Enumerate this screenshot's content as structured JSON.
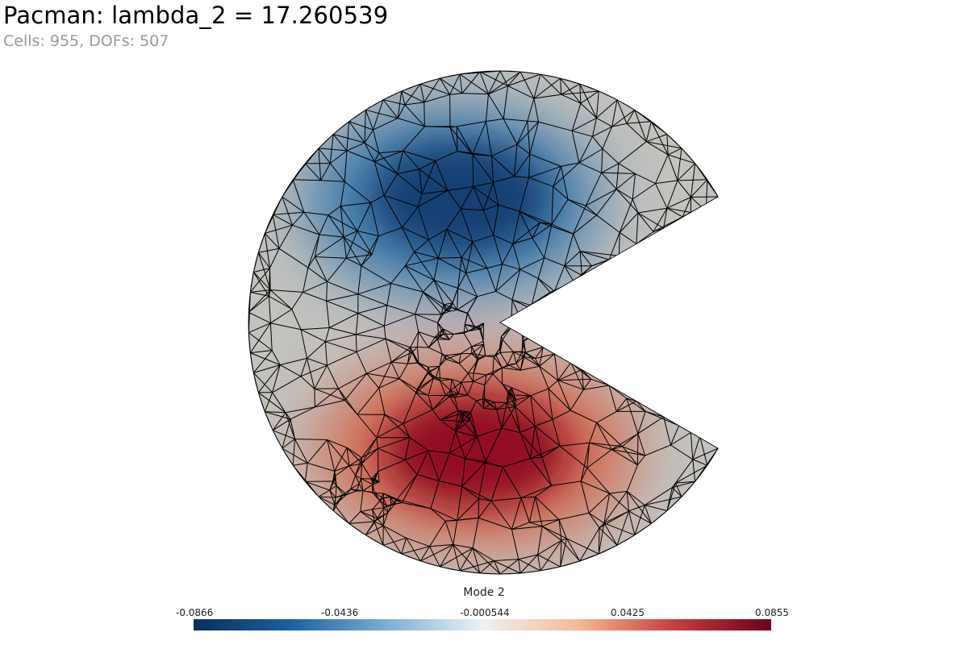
{
  "header": {
    "title": "Pacman: lambda_2 = 17.260539",
    "subtitle": "Cells: 955, DOFs: 507"
  },
  "colorbar": {
    "title": "Mode 2",
    "ticks": [
      "-0.0866",
      "-0.0436",
      "-0.000544",
      "0.0425",
      "0.0855"
    ],
    "colors": [
      "#0a2f5e",
      "#1c5f9e",
      "#7aaed4",
      "#eef1f5",
      "#f5b897",
      "#c93d3d",
      "#6b001d"
    ]
  },
  "chart_data": {
    "type": "heatmap",
    "field_name": "Mode 2",
    "range": [
      -0.0866,
      0.0855
    ],
    "colormap": "blue-white-red (cool to warm)",
    "neutral_color": "#c3c2be",
    "mesh_line_color": "#000000"
  }
}
